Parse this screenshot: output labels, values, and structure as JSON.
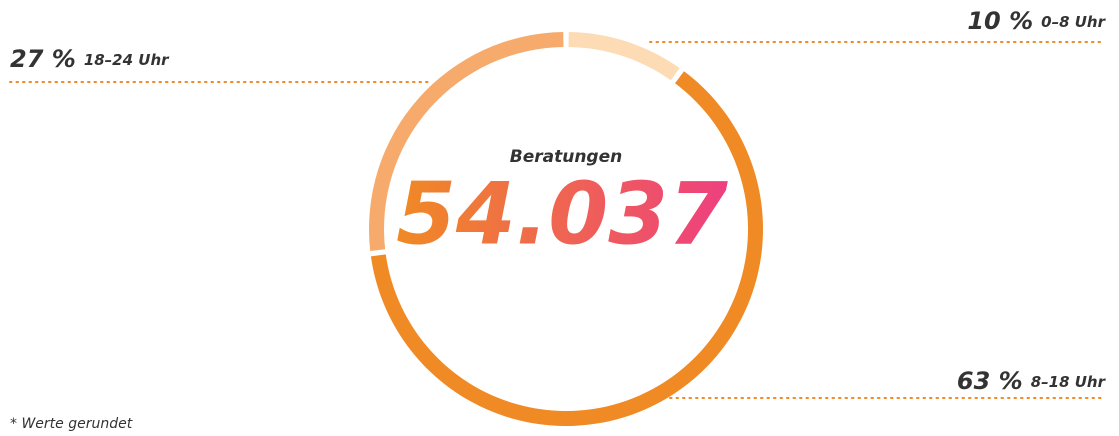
{
  "chart_data": {
    "type": "pie",
    "donut": true,
    "categories": [
      "0–8 Uhr",
      "8–18 Uhr",
      "18–24 Uhr"
    ],
    "values": [
      10,
      63,
      27
    ],
    "value_labels": [
      "10 %",
      "63 %",
      "27 %"
    ],
    "colors": [
      "#fddbb5",
      "#f08a24",
      "#f6aa6b"
    ],
    "center": {
      "title": "Beratungen",
      "value": "54.037"
    },
    "footnote": "* Werte gerundet"
  }
}
